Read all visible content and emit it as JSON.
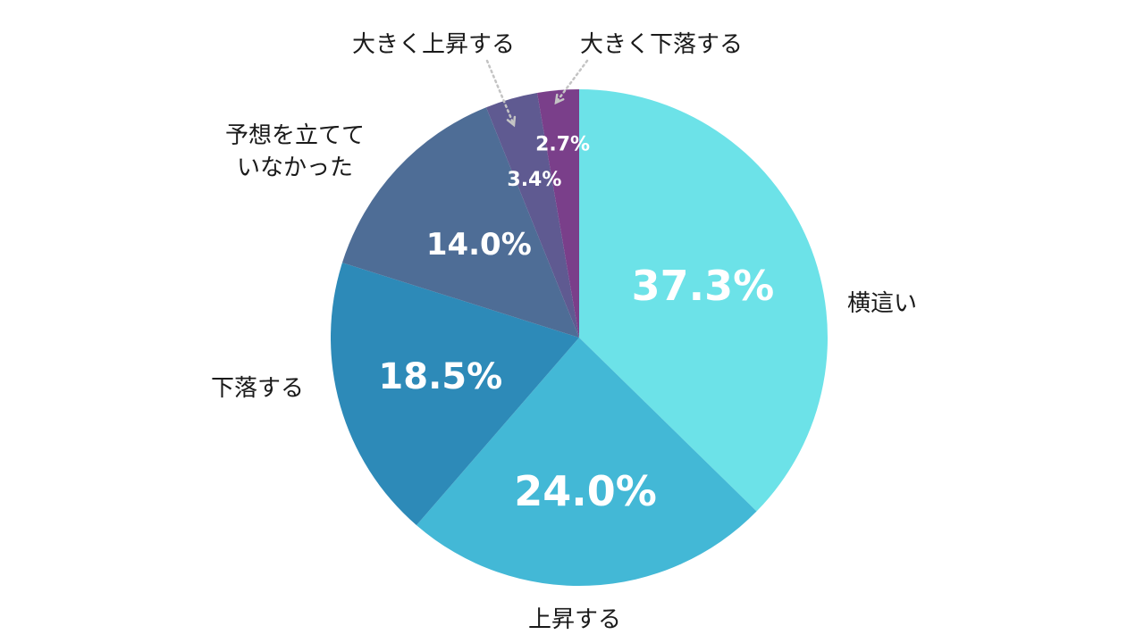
{
  "chart_data": {
    "type": "pie",
    "start": "top",
    "direction": "clockwise",
    "slices": [
      {
        "label": "横這い",
        "value": 37.3,
        "value_label": "37.3%",
        "color": "#6ce2e8"
      },
      {
        "label": "上昇する",
        "value": 24.0,
        "value_label": "24.0%",
        "color": "#43b8d6"
      },
      {
        "label": "下落する",
        "value": 18.5,
        "value_label": "18.5%",
        "color": "#2d8ab8"
      },
      {
        "label": "予想を立てて\nいなかった",
        "value": 14.0,
        "value_label": "14.0%",
        "color": "#4e6d96"
      },
      {
        "label": "大きく上昇する",
        "value": 3.4,
        "value_label": "3.4%",
        "color": "#5f5a91"
      },
      {
        "label": "大きく下落する",
        "value": 2.7,
        "value_label": "2.7%",
        "color": "#7a3f8a"
      }
    ]
  }
}
